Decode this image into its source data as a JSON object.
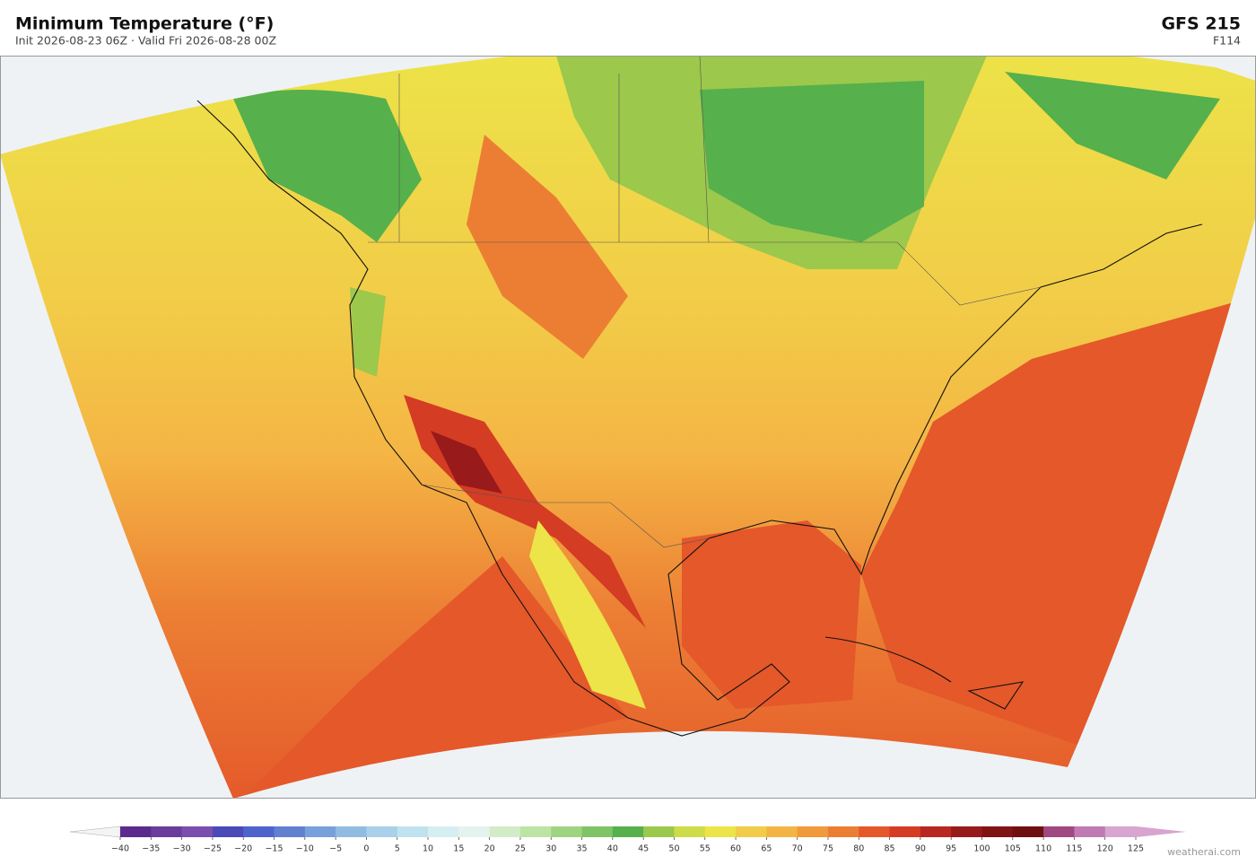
{
  "header": {
    "title": "Minimum Temperature  (°F)",
    "subtitle": "Init 2026-08-23 06Z   ·   Valid Fri 2026-08-28 00Z",
    "model": "GFS  215",
    "forecast_hour": "F114"
  },
  "colorbar": {
    "ticks": [
      {
        "value": -40,
        "label": "−40"
      },
      {
        "value": -35,
        "label": "−35"
      },
      {
        "value": -30,
        "label": "−30"
      },
      {
        "value": -25,
        "label": "−25"
      },
      {
        "value": -20,
        "label": "−20"
      },
      {
        "value": -15,
        "label": "−15"
      },
      {
        "value": -10,
        "label": "−10"
      },
      {
        "value": -5,
        "label": "−5"
      },
      0,
      5,
      10,
      15,
      20,
      25,
      30,
      35,
      40,
      45,
      50,
      55,
      60,
      65,
      70,
      75,
      80,
      85,
      90,
      95,
      100,
      105,
      110,
      115,
      120,
      125
    ],
    "colors": [
      "#5b2a8c",
      "#6a3d9a",
      "#7a4fb0",
      "#4a4ab8",
      "#4e64cc",
      "#6080d0",
      "#7aa0dc",
      "#90bce2",
      "#a8d0e8",
      "#c0e2ee",
      "#d6eef2",
      "#e4f4ec",
      "#d2ecc8",
      "#bde4a4",
      "#9ed480",
      "#7ec464",
      "#56b04c",
      "#9cc84c",
      "#cddc48",
      "#ece448",
      "#f2cc48",
      "#f4b444",
      "#f09a3c",
      "#ec7e34",
      "#e4582a",
      "#d43c24",
      "#b82820",
      "#981a1a",
      "#801414",
      "#6e1010",
      "#a04880",
      "#c07ab4",
      "#d8a4d0"
    ]
  },
  "footer": {
    "credit": "weatherai.com"
  }
}
